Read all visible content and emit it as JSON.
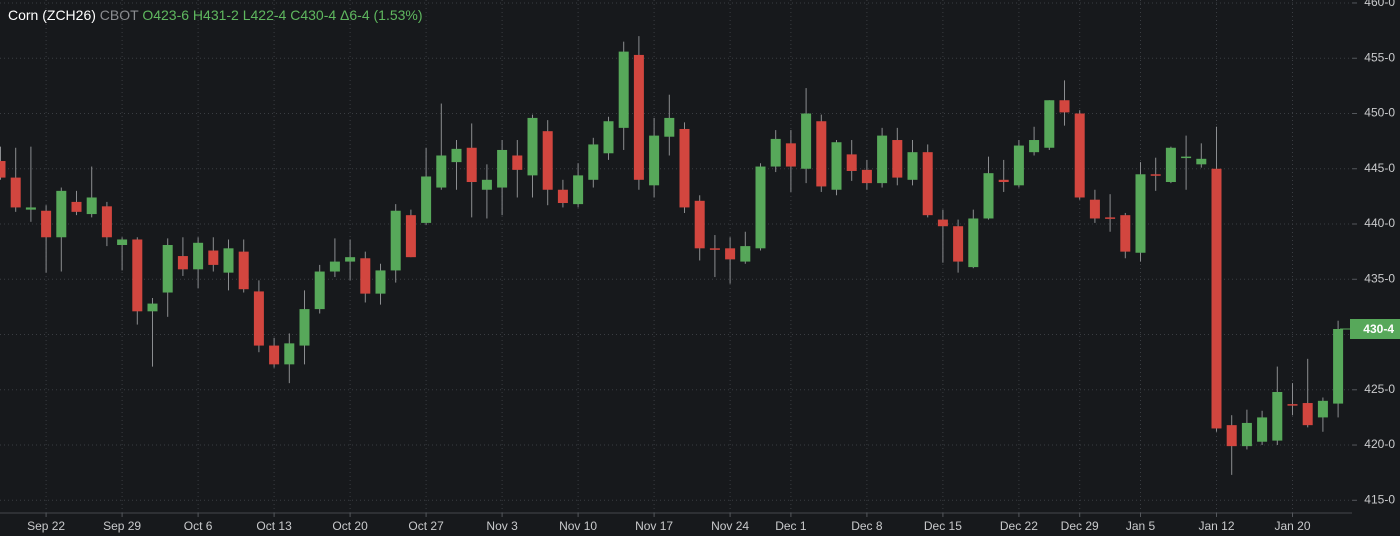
{
  "chart_data": {
    "type": "candlestick",
    "title": "Corn (ZCH26)",
    "exchange": "CBOT",
    "quote_labels": [
      "O423-6",
      "H431-2",
      "L422-4",
      "C430-4",
      "Δ6-4 (1.53%)"
    ],
    "last_price": {
      "value": 430.5,
      "label": "430-4"
    },
    "up_color": "#57a85a",
    "down_color": "#d2463f",
    "grid": true,
    "categories": [
      null,
      null,
      null,
      "Sep 22",
      null,
      null,
      null,
      null,
      "Sep 29",
      null,
      null,
      null,
      null,
      "Oct 6",
      null,
      null,
      null,
      null,
      "Oct 13",
      null,
      null,
      null,
      null,
      "Oct 20",
      null,
      null,
      null,
      null,
      "Oct 27",
      null,
      null,
      null,
      null,
      "Nov 3",
      null,
      null,
      null,
      null,
      "Nov 10",
      null,
      null,
      null,
      null,
      "Nov 17",
      null,
      null,
      null,
      null,
      "Nov 24",
      null,
      null,
      null,
      "Dec 1",
      null,
      null,
      null,
      null,
      "Dec 8",
      null,
      null,
      null,
      null,
      "Dec 15",
      null,
      null,
      null,
      null,
      "Dec 22",
      null,
      null,
      null,
      "Dec 29",
      null,
      null,
      null,
      "Jan 5",
      null,
      null,
      null,
      null,
      "Jan 12",
      null,
      null,
      null,
      null,
      "Jan 20",
      null,
      null,
      null
    ],
    "open": [
      445.7,
      444.2,
      441.3,
      441.2,
      438.8,
      442,
      440.9,
      441.6,
      438.1,
      438.6,
      432.1,
      433.8,
      437.1,
      435.9,
      437.6,
      435.6,
      437.5,
      433.9,
      429,
      427.3,
      429,
      432.3,
      435.7,
      436.6,
      436.9,
      433.7,
      435.8,
      440.8,
      440.1,
      443.3,
      445.6,
      446.9,
      443.1,
      443.3,
      446.2,
      444.4,
      448.4,
      443.1,
      441.8,
      444,
      446.4,
      448.7,
      455.3,
      443.5,
      447.9,
      448.6,
      442.1,
      437.8,
      437.8,
      436.6,
      437.8,
      445.2,
      447.3,
      445,
      449.3,
      443.1,
      446.3,
      444.9,
      443.7,
      447.6,
      444,
      446.5,
      440.4,
      439.8,
      436.1,
      440.5,
      444,
      443.5,
      446.5,
      446.9,
      451.2,
      450,
      442.2,
      440.6,
      440.8,
      437.4,
      444.5,
      443.8,
      446,
      445.4,
      445,
      421.8,
      419.9,
      420.3,
      420.4,
      423.7,
      423.8,
      422.5,
      423.75
    ],
    "high": [
      447,
      446.9,
      447,
      441.7,
      443.3,
      443,
      445.2,
      442,
      438.8,
      438.8,
      433.3,
      438.7,
      438.8,
      438.8,
      438.8,
      438.6,
      438.6,
      434.9,
      429.7,
      430.1,
      434,
      436.3,
      438.7,
      438.6,
      437.5,
      436.4,
      441.8,
      441.3,
      446.9,
      450.9,
      447.6,
      449.1,
      445.4,
      447.6,
      447.6,
      449.9,
      449.4,
      444,
      445.5,
      447.8,
      449.7,
      456.5,
      457,
      449.6,
      451.7,
      449.2,
      442.6,
      439,
      438.8,
      439.3,
      445.5,
      448.5,
      448.5,
      452.3,
      449.9,
      447.6,
      447.6,
      445.8,
      448.7,
      448.7,
      447.6,
      447.2,
      441.3,
      440.4,
      441.3,
      446.1,
      445.8,
      447.6,
      448.8,
      451.2,
      453,
      450.3,
      443.1,
      442.7,
      441,
      445.6,
      446,
      447,
      448,
      447.3,
      448.8,
      422.7,
      423.2,
      423.1,
      427.1,
      425.6,
      427.8,
      424.3,
      431.25
    ],
    "low": [
      444,
      441.1,
      440.2,
      435.6,
      435.7,
      440.8,
      440.6,
      438,
      435.8,
      430.9,
      427.1,
      431.6,
      435.3,
      434.2,
      435.7,
      434,
      433.8,
      428.4,
      427,
      425.6,
      427.3,
      431.9,
      435.2,
      434.9,
      432.9,
      432.7,
      434.7,
      437,
      439.9,
      443.1,
      443.1,
      440.6,
      440.5,
      440.8,
      442.4,
      442.4,
      441.7,
      441.5,
      441.5,
      443.3,
      445.8,
      446.7,
      443.1,
      442.4,
      446.2,
      441,
      436.7,
      435.2,
      434.6,
      436.4,
      437.6,
      444.7,
      442.9,
      443.7,
      442.9,
      442.6,
      443.9,
      443.1,
      443.3,
      443.5,
      443.5,
      440.6,
      436.5,
      435.6,
      436,
      440.4,
      442.9,
      443.3,
      446.2,
      446.7,
      448.9,
      442.2,
      440.1,
      439.3,
      436.9,
      436.6,
      443,
      443.7,
      443.1,
      445.1,
      421.2,
      417.3,
      419.6,
      420,
      420,
      422.7,
      421.6,
      421.2,
      422.5
    ],
    "close": [
      444.2,
      441.5,
      441.5,
      438.8,
      443,
      441.1,
      442.4,
      438.8,
      438.6,
      432.1,
      432.8,
      438.1,
      435.9,
      438.3,
      436.3,
      437.8,
      434.1,
      429,
      427.3,
      429.2,
      432.3,
      435.7,
      436.6,
      437,
      433.7,
      435.8,
      441.2,
      437,
      444.3,
      446.2,
      446.8,
      443.8,
      444,
      446.7,
      444.9,
      449.6,
      443.1,
      441.9,
      444.4,
      447.2,
      449.3,
      455.6,
      444,
      448,
      449.6,
      441.5,
      437.8,
      437.7,
      436.8,
      438,
      445.2,
      447.7,
      445.2,
      450,
      443.4,
      447.4,
      444.8,
      443.7,
      448,
      444.2,
      446.5,
      440.8,
      439.8,
      436.6,
      440.5,
      444.6,
      443.8,
      447.1,
      447.6,
      451.2,
      450.1,
      442.4,
      440.5,
      440.5,
      437.5,
      444.5,
      444.4,
      446.9,
      446.1,
      445.9,
      421.5,
      419.9,
      422,
      422.5,
      424.8,
      423.6,
      421.8,
      424,
      430.5
    ],
    "ylim": [
      413.85,
      460.27
    ],
    "yticks": [
      {
        "value": 415,
        "label": "415-0"
      },
      {
        "value": 420,
        "label": "420-0"
      },
      {
        "value": 425,
        "label": "425-0"
      },
      {
        "value": 430,
        "label": "430-0"
      },
      {
        "value": 435,
        "label": "435-0"
      },
      {
        "value": 440,
        "label": "440-0"
      },
      {
        "value": 445,
        "label": "445-0"
      },
      {
        "value": 450,
        "label": "450-0"
      },
      {
        "value": 455,
        "label": "455-0"
      },
      {
        "value": 460,
        "label": "460-0"
      }
    ]
  }
}
